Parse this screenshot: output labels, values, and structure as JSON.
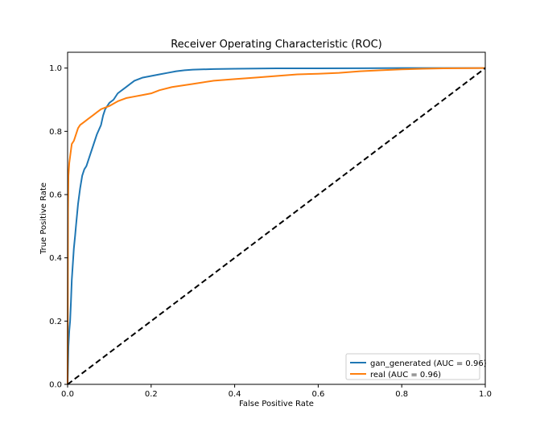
{
  "chart_data": {
    "type": "line",
    "title": "Receiver Operating Characteristic (ROC)",
    "xlabel": "False Positive Rate",
    "ylabel": "True Positive Rate",
    "xlim": [
      0.0,
      1.0
    ],
    "ylim": [
      0.0,
      1.05
    ],
    "xticks": [
      0.0,
      0.2,
      0.4,
      0.6,
      0.8,
      1.0
    ],
    "xtick_labels": [
      "0.0",
      "0.2",
      "0.4",
      "0.6",
      "0.8",
      "1.0"
    ],
    "yticks": [
      0.0,
      0.2,
      0.4,
      0.6,
      0.8,
      1.0
    ],
    "ytick_labels": [
      "0.0",
      "0.2",
      "0.4",
      "0.6",
      "0.8",
      "1.0"
    ],
    "grid": false,
    "legend_position": "lower-right",
    "series": [
      {
        "name": "gan_generated (AUC = 0.96)",
        "color": "#1f77b4",
        "x": [
          0.0,
          0.002,
          0.004,
          0.006,
          0.008,
          0.01,
          0.012,
          0.015,
          0.018,
          0.02,
          0.025,
          0.03,
          0.035,
          0.04,
          0.045,
          0.05,
          0.055,
          0.06,
          0.07,
          0.08,
          0.085,
          0.09,
          0.1,
          0.11,
          0.12,
          0.13,
          0.14,
          0.15,
          0.16,
          0.17,
          0.18,
          0.2,
          0.22,
          0.24,
          0.26,
          0.28,
          0.3,
          0.35,
          0.4,
          0.5,
          0.6,
          0.7,
          0.8,
          0.9,
          1.0
        ],
        "y": [
          0.0,
          0.12,
          0.17,
          0.2,
          0.26,
          0.33,
          0.37,
          0.43,
          0.47,
          0.5,
          0.57,
          0.62,
          0.66,
          0.68,
          0.69,
          0.71,
          0.73,
          0.75,
          0.79,
          0.82,
          0.85,
          0.87,
          0.89,
          0.9,
          0.92,
          0.93,
          0.94,
          0.95,
          0.96,
          0.965,
          0.97,
          0.975,
          0.98,
          0.985,
          0.99,
          0.993,
          0.995,
          0.997,
          0.998,
          0.999,
          0.999,
          0.9995,
          1.0,
          1.0,
          1.0
        ]
      },
      {
        "name": "real (AUC = 0.96)",
        "color": "#ff7f0e",
        "x": [
          0.0,
          0.001,
          0.002,
          0.004,
          0.006,
          0.008,
          0.01,
          0.015,
          0.02,
          0.025,
          0.03,
          0.04,
          0.05,
          0.06,
          0.07,
          0.08,
          0.09,
          0.1,
          0.12,
          0.14,
          0.16,
          0.18,
          0.2,
          0.22,
          0.25,
          0.3,
          0.35,
          0.4,
          0.45,
          0.5,
          0.55,
          0.6,
          0.65,
          0.7,
          0.75,
          0.8,
          0.85,
          0.9,
          1.0
        ],
        "y": [
          0.0,
          0.55,
          0.66,
          0.7,
          0.72,
          0.74,
          0.76,
          0.77,
          0.79,
          0.81,
          0.82,
          0.83,
          0.84,
          0.85,
          0.86,
          0.87,
          0.875,
          0.88,
          0.895,
          0.905,
          0.91,
          0.915,
          0.92,
          0.93,
          0.94,
          0.95,
          0.96,
          0.965,
          0.97,
          0.975,
          0.98,
          0.982,
          0.985,
          0.99,
          0.993,
          0.996,
          0.998,
          0.999,
          1.0
        ]
      },
      {
        "color": "#000000",
        "style": "dashed",
        "x": [
          0.0,
          1.0
        ],
        "y": [
          0.0,
          1.0
        ]
      }
    ]
  }
}
